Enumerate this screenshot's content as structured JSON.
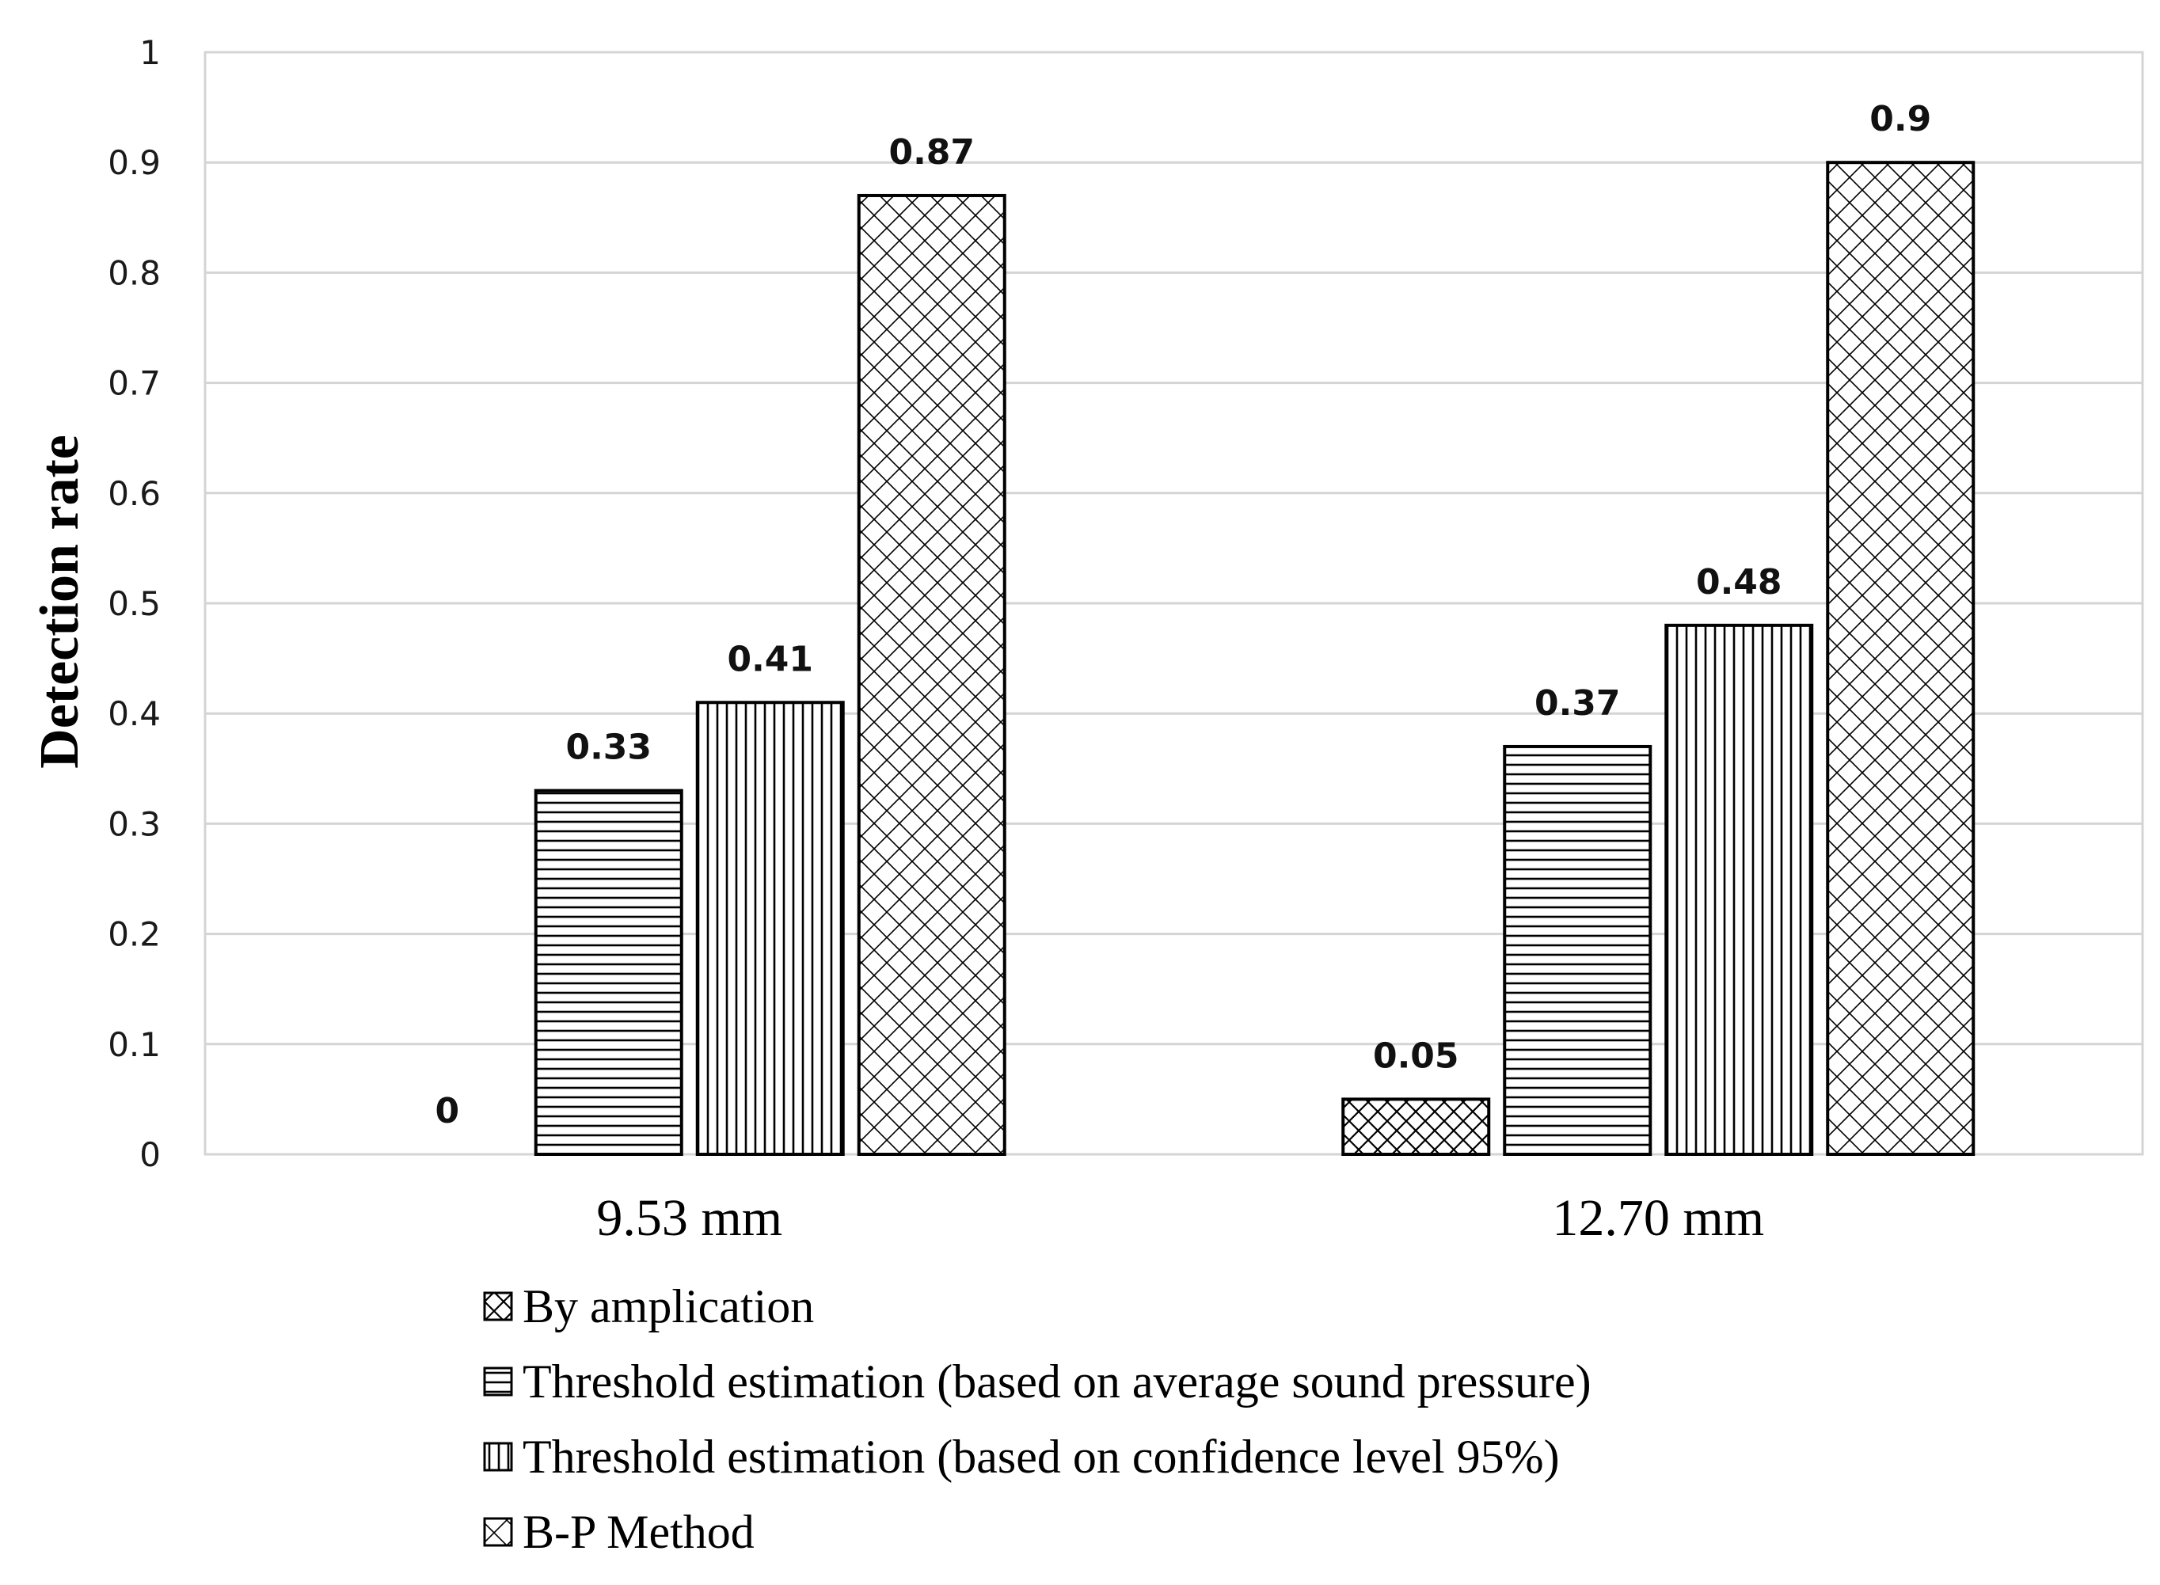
{
  "chart_data": {
    "type": "bar",
    "title": "",
    "xlabel": "",
    "ylabel": "Detection rate",
    "ylim": [
      0,
      1
    ],
    "yticks": [
      "0",
      "0.1",
      "0.2",
      "0.3",
      "0.4",
      "0.5",
      "0.6",
      "0.7",
      "0.8",
      "0.9",
      "1"
    ],
    "grid": true,
    "legend_position": "bottom",
    "categories": [
      "9.53 mm",
      "12.70 mm"
    ],
    "series": [
      {
        "name": "By amplication",
        "pattern": "crosshatch-small",
        "values": [
          0,
          0.05
        ],
        "labels": [
          "0",
          "0.05"
        ]
      },
      {
        "name": "Threshold estimation (based on average sound pressure)",
        "pattern": "horizontal",
        "values": [
          0.33,
          0.37
        ],
        "labels": [
          "0.33",
          "0.37"
        ]
      },
      {
        "name": "Threshold estimation (based on confidence level 95%)",
        "pattern": "vertical",
        "values": [
          0.41,
          0.48
        ],
        "labels": [
          "0.41",
          "0.48"
        ]
      },
      {
        "name": "B-P Method",
        "pattern": "crosshatch-large",
        "values": [
          0.87,
          0.9
        ],
        "labels": [
          "0.87",
          "0.9"
        ]
      }
    ],
    "colors": {
      "grid": "#d4d4d4",
      "bar_outline": "#000000",
      "pattern": "#000000",
      "background": "#ffffff"
    }
  }
}
